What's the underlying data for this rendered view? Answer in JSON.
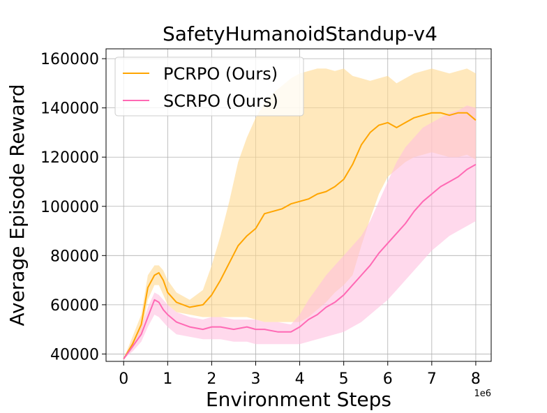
{
  "chart_data": {
    "type": "line",
    "title": "SafetyHumanoidStandup-v4",
    "xlabel": "Environment Steps",
    "ylabel": "Average Episode Reward",
    "x_scale_label": "1e6",
    "xlim": [
      -0.4,
      8.35
    ],
    "ylim": [
      37000,
      164000
    ],
    "xticks": [
      0,
      1,
      2,
      3,
      4,
      5,
      6,
      7,
      8
    ],
    "xtick_labels": [
      "0",
      "1",
      "2",
      "3",
      "4",
      "5",
      "6",
      "7",
      "8"
    ],
    "yticks": [
      40000,
      60000,
      80000,
      100000,
      120000,
      140000,
      160000
    ],
    "ytick_labels": [
      "40000",
      "60000",
      "80000",
      "100000",
      "120000",
      "140000",
      "160000"
    ],
    "grid": true,
    "legend_position": "top-left",
    "series": [
      {
        "name": "PCRPO (Ours)",
        "color": "#ffa500",
        "band_color": "#ffd890",
        "x": [
          0,
          0.2,
          0.4,
          0.55,
          0.7,
          0.8,
          0.9,
          1.0,
          1.2,
          1.5,
          1.8,
          2.0,
          2.2,
          2.4,
          2.6,
          2.8,
          3.0,
          3.2,
          3.4,
          3.6,
          3.8,
          4.0,
          4.2,
          4.4,
          4.6,
          4.8,
          5.0,
          5.2,
          5.4,
          5.6,
          5.8,
          6.0,
          6.2,
          6.4,
          6.6,
          6.8,
          7.0,
          7.2,
          7.4,
          7.6,
          7.8,
          8.0
        ],
        "y": [
          38000,
          44000,
          52000,
          67000,
          72000,
          73000,
          70000,
          65000,
          61000,
          59000,
          60000,
          64000,
          70000,
          77000,
          84000,
          88000,
          91000,
          97000,
          98000,
          99000,
          101000,
          102000,
          103000,
          105000,
          106000,
          108000,
          111000,
          117000,
          125000,
          130000,
          133000,
          134000,
          132000,
          134000,
          136000,
          137000,
          138000,
          138000,
          137000,
          138000,
          138000,
          135000
        ],
        "lower": [
          38000,
          42000,
          48000,
          62000,
          68000,
          68000,
          64000,
          60000,
          57000,
          56000,
          55000,
          55000,
          55000,
          55000,
          55000,
          55000,
          54000,
          53000,
          53000,
          53000,
          53000,
          53000,
          55000,
          58000,
          61000,
          65000,
          68000,
          72000,
          84000,
          95000,
          105000,
          112000,
          115000,
          118000,
          120000,
          121000,
          122000,
          121000,
          120000,
          120000,
          121000,
          119000
        ],
        "upper": [
          38000,
          47000,
          56000,
          72000,
          76000,
          76000,
          74000,
          70000,
          65000,
          62000,
          66000,
          76000,
          88000,
          102000,
          118000,
          128000,
          136000,
          142000,
          146000,
          149000,
          152000,
          154000,
          155000,
          156000,
          156000,
          155000,
          156000,
          153000,
          152000,
          151000,
          152000,
          153000,
          150000,
          152000,
          154000,
          155000,
          156000,
          155000,
          154000,
          155000,
          156000,
          154000
        ]
      },
      {
        "name": "SCRPO (Ours)",
        "color": "#ff69b4",
        "band_color": "#ffc0e0",
        "x": [
          0,
          0.2,
          0.4,
          0.55,
          0.7,
          0.8,
          0.9,
          1.0,
          1.2,
          1.5,
          1.8,
          2.0,
          2.2,
          2.5,
          2.8,
          3.0,
          3.2,
          3.5,
          3.8,
          4.0,
          4.2,
          4.4,
          4.6,
          4.8,
          5.0,
          5.2,
          5.4,
          5.6,
          5.8,
          6.0,
          6.2,
          6.4,
          6.6,
          6.8,
          7.0,
          7.2,
          7.4,
          7.6,
          7.8,
          8.0
        ],
        "y": [
          38000,
          43000,
          48000,
          55000,
          62000,
          61000,
          58000,
          56000,
          53000,
          51000,
          50000,
          51000,
          51000,
          50000,
          51000,
          50000,
          50000,
          49000,
          49000,
          51000,
          54000,
          56000,
          59000,
          61000,
          64000,
          68000,
          72000,
          76000,
          81000,
          85000,
          89000,
          93000,
          98000,
          102000,
          105000,
          108000,
          110000,
          112000,
          115000,
          117000
        ],
        "lower": [
          38000,
          41000,
          45000,
          51000,
          56000,
          55000,
          53000,
          51000,
          48000,
          47000,
          46000,
          46000,
          46000,
          45000,
          45000,
          44000,
          44000,
          44000,
          44000,
          44000,
          45000,
          46000,
          47000,
          48000,
          49000,
          51000,
          53000,
          56000,
          59000,
          62000,
          66000,
          70000,
          74000,
          78000,
          82000,
          85000,
          88000,
          90000,
          92000,
          94000
        ],
        "upper": [
          38000,
          45000,
          51000,
          59000,
          65000,
          64000,
          62000,
          60000,
          57000,
          55000,
          54000,
          55000,
          55000,
          54000,
          54000,
          54000,
          53000,
          53000,
          52000,
          56000,
          62000,
          67000,
          72000,
          76000,
          80000,
          84000,
          88000,
          94000,
          102000,
          110000,
          118000,
          124000,
          128000,
          132000,
          134000,
          136000,
          138000,
          139000,
          141000,
          140000
        ]
      }
    ]
  }
}
